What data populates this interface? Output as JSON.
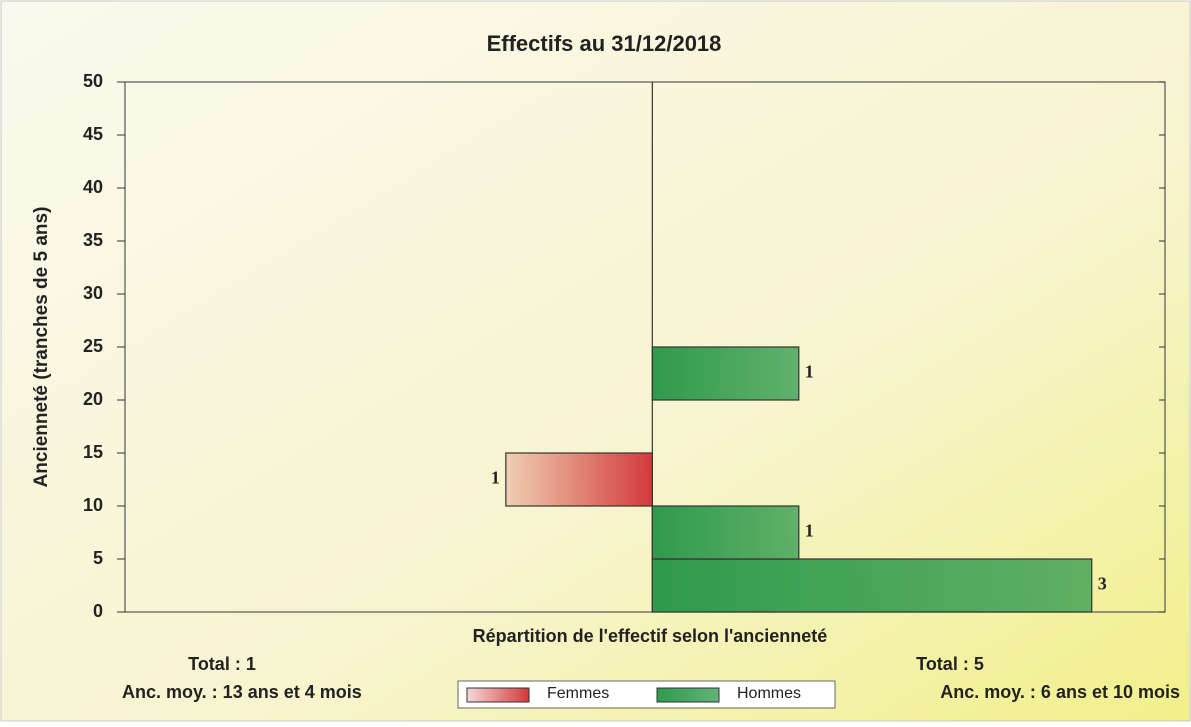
{
  "chart_data": {
    "type": "pyramid",
    "title": "Effectifs au 31/12/2018",
    "ylabel": "Ancienneté (tranches de 5 ans)",
    "xlabel": "Répartition de l'effectif selon l'ancienneté",
    "ybins": [
      0,
      5,
      10,
      15,
      20,
      25
    ],
    "ylim": [
      0,
      50
    ],
    "yticks": [
      0,
      5,
      10,
      15,
      20,
      25,
      30,
      35,
      40,
      45,
      50
    ],
    "xlim": [
      -3.6,
      3.5
    ],
    "series": [
      {
        "name": "Femmes",
        "color": "#d23a3a",
        "side": "left",
        "values": [
          null,
          null,
          1,
          null,
          null
        ],
        "total": "Total : 1",
        "mean": "Anc. moy. : 13 ans et 4 mois"
      },
      {
        "name": "Hommes",
        "color": "#2f9a4c",
        "side": "right",
        "values": [
          3,
          1,
          null,
          null,
          1
        ],
        "total": "Total : 5",
        "mean": "Anc. moy. : 6 ans et 10 mois"
      }
    ]
  }
}
